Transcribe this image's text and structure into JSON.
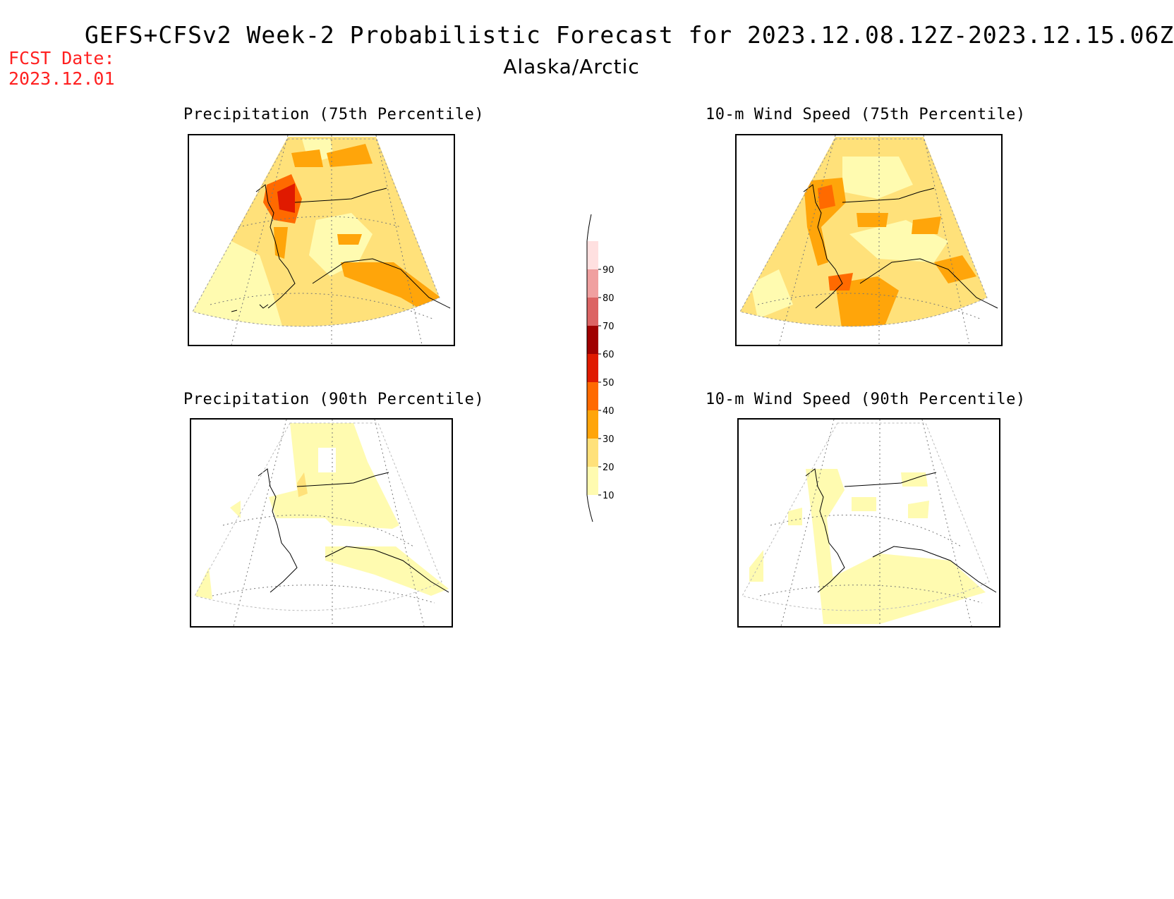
{
  "header": {
    "title": "GEFS+CFSv2 Week-2 Probabilistic Forecast for 2023.12.08.12Z-2023.12.15.06Z",
    "region": "Alaska/Arctic",
    "fcst_label": "FCST Date:",
    "fcst_date": "2023.12.01"
  },
  "panels": [
    {
      "title": "Precipitation (75th Percentile)"
    },
    {
      "title": "10-m Wind Speed (75th Percentile)"
    },
    {
      "title": "Precipitation (90th Percentile)"
    },
    {
      "title": "10-m Wind Speed (90th Percentile)"
    }
  ],
  "colorbar": {
    "levels": [
      "10",
      "20",
      "30",
      "40",
      "50",
      "60",
      "70",
      "80",
      "90"
    ],
    "colors": [
      "#fffbb0",
      "#ffe17a",
      "#ffa50a",
      "#ff6a00",
      "#e01a00",
      "#a00000",
      "#dc6464",
      "#f0a0a0",
      "#ffe0e0"
    ]
  }
}
